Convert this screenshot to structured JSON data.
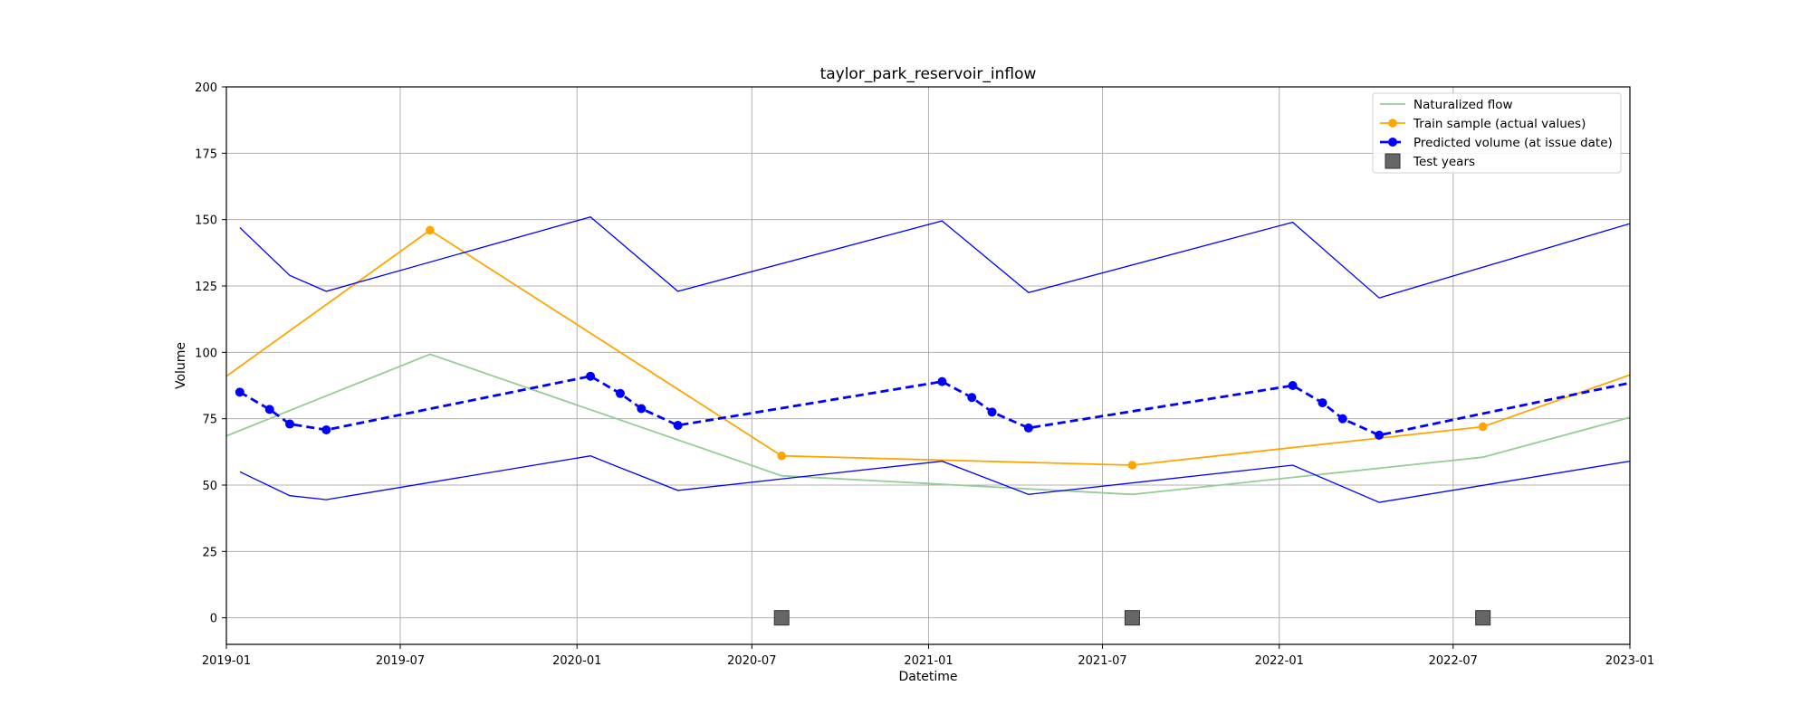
{
  "chart_data": {
    "type": "line",
    "title": "taylor_park_reservoir_inflow",
    "xlabel": "Datetime",
    "ylabel": "Volume",
    "xlim": [
      "2019-01-01",
      "2023-01-01"
    ],
    "ylim": [
      -10,
      200
    ],
    "yticks": [
      0,
      25,
      50,
      75,
      100,
      125,
      150,
      175,
      200
    ],
    "xticks": [
      "2019-01",
      "2019-07",
      "2020-01",
      "2020-07",
      "2021-01",
      "2021-07",
      "2022-01",
      "2022-07",
      "2023-01"
    ],
    "grid": true,
    "legend_position": "top-right",
    "series": [
      {
        "name": "Naturalized flow",
        "style": "line",
        "color": "#96cc96",
        "points": [
          [
            "2019-01-01",
            68.5
          ],
          [
            "2019-08-01",
            99.3
          ],
          [
            "2020-08-01",
            53.5
          ],
          [
            "2021-08-01",
            46.5
          ],
          [
            "2022-08-01",
            60.5
          ],
          [
            "2023-01-01",
            75.5
          ]
        ]
      },
      {
        "name": "Train sample (actual values)",
        "style": "line-marker",
        "color": "#ffa500",
        "points": [
          [
            "2019-01-01",
            91.0
          ],
          [
            "2019-08-01",
            146.0
          ],
          [
            "2020-08-01",
            61.0
          ],
          [
            "2021-08-01",
            57.5
          ],
          [
            "2022-08-01",
            72.0
          ],
          [
            "2023-01-01",
            91.5
          ]
        ],
        "marker_points": [
          [
            "2019-08-01",
            146.0
          ],
          [
            "2020-08-01",
            61.0
          ],
          [
            "2021-08-01",
            57.5
          ],
          [
            "2022-08-01",
            72.0
          ]
        ]
      },
      {
        "name": "Predicted volume (at issue date)",
        "style": "dashed-marker",
        "color": "#0000ff",
        "segments": [
          [
            [
              "2019-01-15",
              85.0
            ],
            [
              "2019-02-15",
              78.5
            ],
            [
              "2019-03-08",
              73.0
            ],
            [
              "2019-04-15",
              70.8
            ],
            [
              "2020-01-15",
              91.0
            ],
            [
              "2020-02-15",
              84.5
            ],
            [
              "2020-03-08",
              78.8
            ],
            [
              "2020-04-15",
              72.5
            ],
            [
              "2021-01-15",
              89.0
            ],
            [
              "2021-02-15",
              83.0
            ],
            [
              "2021-03-08",
              77.5
            ],
            [
              "2021-04-15",
              71.5
            ],
            [
              "2022-01-15",
              87.5
            ],
            [
              "2022-02-15",
              81.0
            ],
            [
              "2022-03-08",
              75.0
            ],
            [
              "2022-04-15",
              68.8
            ],
            [
              "2023-01-01",
              88.5
            ]
          ]
        ]
      },
      {
        "name": "",
        "style": "line",
        "color": "#0000ff",
        "points": [
          [
            "2019-01-15",
            147.0
          ],
          [
            "2019-03-08",
            129.0
          ],
          [
            "2019-04-15",
            123.0
          ],
          [
            "2020-01-15",
            151.0
          ],
          [
            "2020-04-15",
            123.0
          ],
          [
            "2021-01-15",
            149.5
          ],
          [
            "2021-04-15",
            122.5
          ],
          [
            "2022-01-15",
            149.0
          ],
          [
            "2022-04-15",
            120.5
          ],
          [
            "2023-01-01",
            148.5
          ]
        ]
      },
      {
        "name": "",
        "style": "line",
        "color": "#0000ff",
        "points": [
          [
            "2019-01-15",
            55.0
          ],
          [
            "2019-03-08",
            46.0
          ],
          [
            "2019-04-15",
            44.5
          ],
          [
            "2020-01-15",
            61.0
          ],
          [
            "2020-02-15",
            56.5
          ],
          [
            "2020-04-15",
            48.0
          ],
          [
            "2021-01-15",
            59.0
          ],
          [
            "2021-04-15",
            46.5
          ],
          [
            "2022-01-15",
            57.5
          ],
          [
            "2022-04-15",
            43.5
          ],
          [
            "2023-01-01",
            59.0
          ]
        ]
      },
      {
        "name": "Test years",
        "style": "square-marker",
        "color": "#666666",
        "points": [
          [
            "2020-08-01",
            0
          ],
          [
            "2021-08-01",
            0
          ],
          [
            "2022-08-01",
            0
          ]
        ]
      }
    ],
    "legend": [
      {
        "name": "Naturalized flow",
        "style": "line",
        "color": "#96cc96"
      },
      {
        "name": "Train sample (actual values)",
        "style": "line-marker",
        "color": "#ffa500"
      },
      {
        "name": "Predicted volume (at issue date)",
        "style": "dashed-marker",
        "color": "#0000ff"
      },
      {
        "name": "Test years",
        "style": "square-marker",
        "color": "#666666"
      }
    ]
  }
}
